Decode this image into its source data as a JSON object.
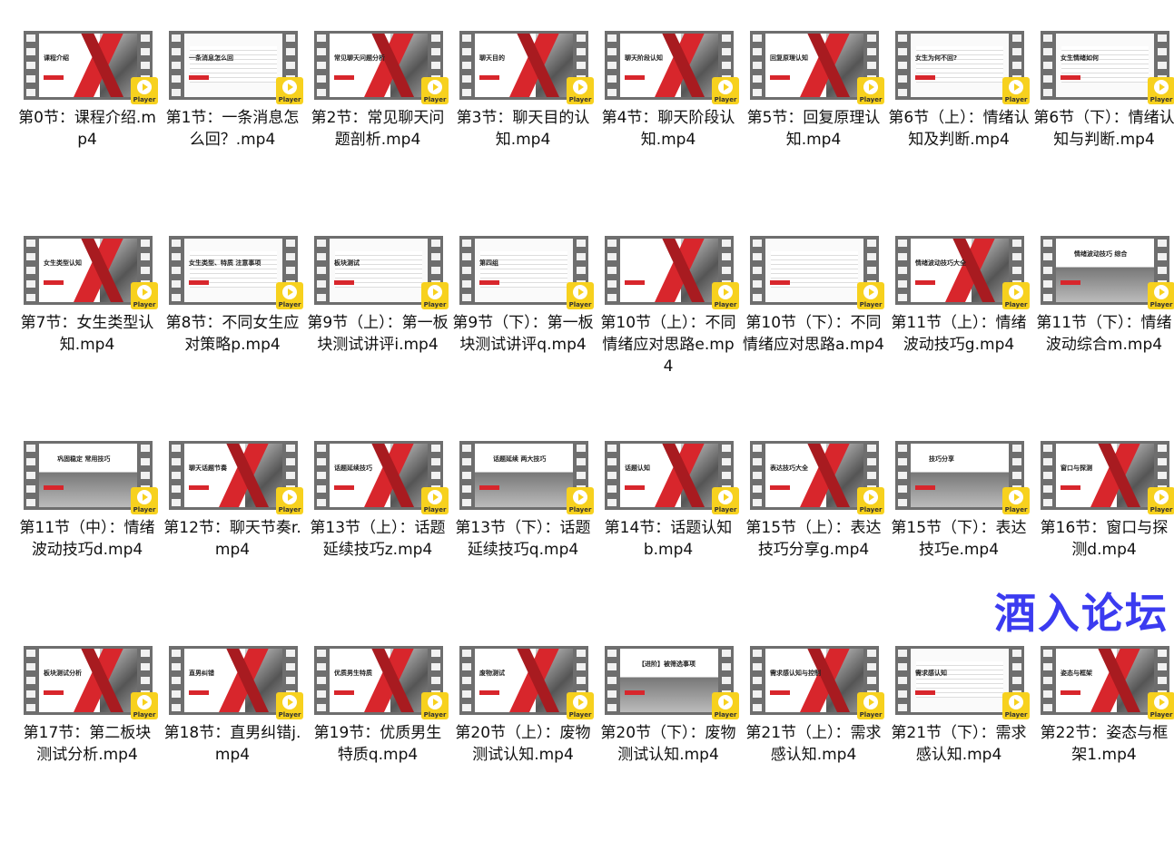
{
  "player_badge": "Player",
  "colors": {
    "accent_red": "#d8262c",
    "badge_yellow": "#f7d11e",
    "watermark": "#3b3bf0"
  },
  "watermark": "酒入论坛",
  "files": [
    {
      "name": "第0节：课程介绍.mp4",
      "thumb": "课程介绍",
      "style": "slide"
    },
    {
      "name": "第1节：一条消息怎么回？.mp4",
      "thumb": "一条消息怎么回",
      "style": "doc"
    },
    {
      "name": "第2节：常见聊天问题剖析.mp4",
      "thumb": "常见聊天问题分析",
      "style": "slide"
    },
    {
      "name": "第3节：聊天目的认知.mp4",
      "thumb": "聊天目的",
      "style": "slide"
    },
    {
      "name": "第4节：聊天阶段认知.mp4",
      "thumb": "聊天阶段认知",
      "style": "slide"
    },
    {
      "name": "第5节：回复原理认知.mp4",
      "thumb": "回复原理认知",
      "style": "slide"
    },
    {
      "name": "第6节（上）：情绪认知及判断.mp4",
      "thumb": "女生为何不回?",
      "style": "doc"
    },
    {
      "name": "第6节（下）：情绪认知与判断.mp4",
      "thumb": "女生情绪如何",
      "style": "doc"
    },
    {
      "name": "第7节：女生类型认知.mp4",
      "thumb": "女生类型认知",
      "style": "slide"
    },
    {
      "name": "第8节：不同女生应对策略p.mp4",
      "thumb": "女生类型、特质 注意事项",
      "style": "doc"
    },
    {
      "name": "第9节（上）：第一板块测试讲评i.mp4",
      "thumb": "板块测试",
      "style": "doc"
    },
    {
      "name": "第9节（下）：第一板块测试讲评q.mp4",
      "thumb": "第四组",
      "style": "doc"
    },
    {
      "name": "第10节（上）：不同情绪应对思路e.mp4",
      "thumb": "",
      "style": "slide"
    },
    {
      "name": "第10节（下）：不同情绪应对思路a.mp4",
      "thumb": "",
      "style": "doc"
    },
    {
      "name": "第11节（上）：情绪波动技巧g.mp4",
      "thumb": "情绪波动技巧大全",
      "style": "slide"
    },
    {
      "name": "第11节（下）：情绪波动综合m.mp4",
      "thumb": "情绪波动技巧 综合",
      "style": "banner"
    },
    {
      "name": "第11节（中）：情绪波动技巧d.mp4",
      "thumb": "巩固稳定 常用技巧",
      "style": "banner"
    },
    {
      "name": "第12节：聊天节奏r.mp4",
      "thumb": "聊天话题节奏",
      "style": "slide"
    },
    {
      "name": "第13节（上）：话题延续技巧z.mp4",
      "thumb": "话题延续技巧",
      "style": "slide"
    },
    {
      "name": "第13节（下）：话题延续技巧q.mp4",
      "thumb": "话题延续 两大技巧",
      "style": "banner"
    },
    {
      "name": "第14节：话题认知b.mp4",
      "thumb": "话题认知",
      "style": "slide"
    },
    {
      "name": "第15节（上）：表达技巧分享g.mp4",
      "thumb": "表达技巧大全",
      "style": "slide"
    },
    {
      "name": "第15节（下）：表达技巧e.mp4",
      "thumb": "技巧分享",
      "style": "banner"
    },
    {
      "name": "第16节：窗口与探测d.mp4",
      "thumb": "窗口与探测",
      "style": "slide"
    },
    {
      "name": "第17节：第二板块测试分析.mp4",
      "thumb": "板块测试分析",
      "style": "slide"
    },
    {
      "name": "第18节：直男纠错j.mp4",
      "thumb": "直男纠错",
      "style": "slide"
    },
    {
      "name": "第19节：优质男生特质q.mp4",
      "thumb": "优质男生特质",
      "style": "slide"
    },
    {
      "name": "第20节（上）：废物测试认知.mp4",
      "thumb": "废物测试",
      "style": "slide"
    },
    {
      "name": "第20节（下）：废物测试认知.mp4",
      "thumb": "【进阶】被筛选事项",
      "style": "banner"
    },
    {
      "name": "第21节（上）：需求感认知.mp4",
      "thumb": "需求感认知与控制",
      "style": "slide"
    },
    {
      "name": "第21节（下）：需求感认知.mp4",
      "thumb": "需求感认知",
      "style": "doc"
    },
    {
      "name": "第22节：姿态与框架1.mp4",
      "thumb": "姿态与框架",
      "style": "slide"
    }
  ]
}
